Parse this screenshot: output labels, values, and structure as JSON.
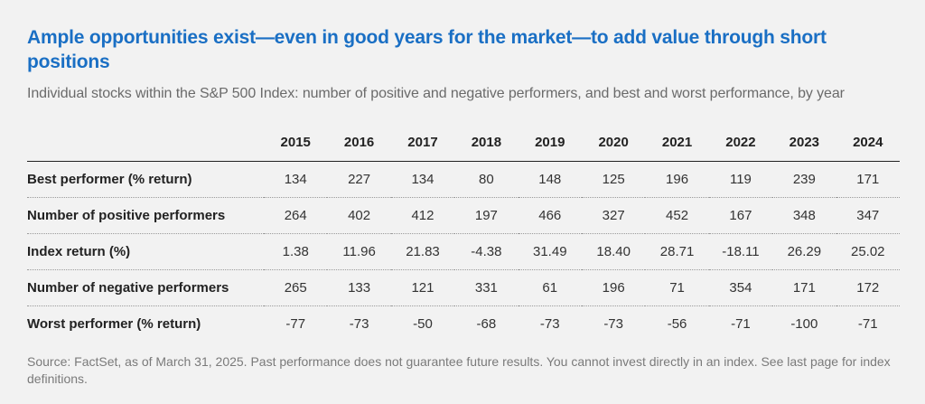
{
  "header": {
    "title": "Ample opportunities exist—even in good years for the market—to add value through short positions",
    "subtitle": "Individual stocks within the S&P 500 Index: number of positive and negative performers, and best and worst performance, by year"
  },
  "footer": {
    "source": "Source: FactSet, as of March 31, 2025. Past performance does not guarantee future results. You cannot invest directly in an index. See last page for index definitions."
  },
  "chart_data": {
    "type": "table",
    "title": "Ample opportunities exist—even in good years for the market—to add value through short positions",
    "subtitle": "Individual stocks within the S&P 500 Index: number of positive and negative performers, and best and worst performance, by year",
    "columns": [
      "2015",
      "2016",
      "2017",
      "2018",
      "2019",
      "2020",
      "2021",
      "2022",
      "2023",
      "2024"
    ],
    "rows": [
      {
        "label": "Best performer (% return)",
        "values": [
          "134",
          "227",
          "134",
          "80",
          "148",
          "125",
          "196",
          "119",
          "239",
          "171"
        ]
      },
      {
        "label": "Number of positive performers",
        "values": [
          "264",
          "402",
          "412",
          "197",
          "466",
          "327",
          "452",
          "167",
          "348",
          "347"
        ]
      },
      {
        "label": "Index return (%)",
        "values": [
          "1.38",
          "11.96",
          "21.83",
          "-4.38",
          "31.49",
          "18.40",
          "28.71",
          "-18.11",
          "26.29",
          "25.02"
        ]
      },
      {
        "label": "Number of negative performers",
        "values": [
          "265",
          "133",
          "121",
          "331",
          "61",
          "196",
          "71",
          "354",
          "171",
          "172"
        ]
      },
      {
        "label": "Worst performer (% return)",
        "values": [
          "-77",
          "-73",
          "-50",
          "-68",
          "-73",
          "-73",
          "-56",
          "-71",
          "-100",
          "-71"
        ]
      }
    ]
  },
  "colors": {
    "title": "#1a6fc4",
    "subtitle": "#6a6a6a",
    "background": "#f2f2f2",
    "text": "#222222"
  }
}
